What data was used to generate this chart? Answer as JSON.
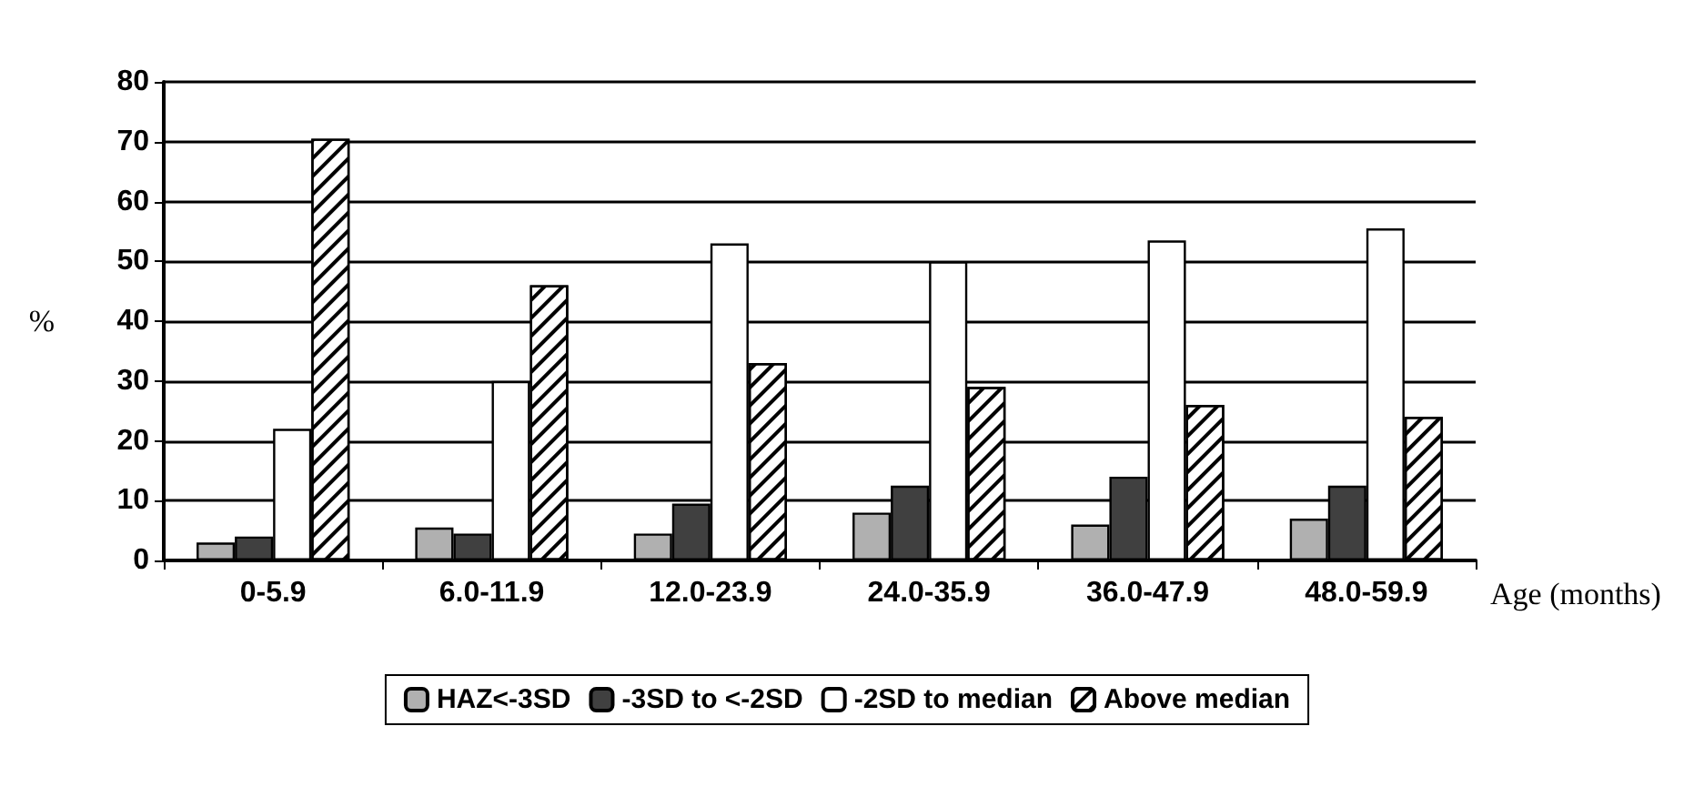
{
  "chart_data": {
    "type": "bar",
    "xlabel": "Age (months)",
    "ylabel": "%",
    "categories": [
      "0-5.9",
      "6.0-11.9",
      "12.0-23.9",
      "24.0-35.9",
      "36.0-47.9",
      "48.0-59.9"
    ],
    "series": [
      {
        "name": "HAZ<-3SD",
        "color": "#b0b0b0",
        "values": [
          3,
          5.5,
          4.5,
          8,
          6,
          7
        ]
      },
      {
        "name": "-3SD to <-2SD",
        "color": "#404040",
        "values": [
          4,
          4.5,
          9.5,
          12.5,
          14,
          12.5
        ]
      },
      {
        "name": "-2SD to median",
        "color": "#ffffff",
        "values": [
          22,
          30,
          53,
          50,
          53.5,
          55.5
        ]
      },
      {
        "name": "Above median",
        "color": "#ffffff",
        "values": [
          70.5,
          46,
          33,
          29,
          26,
          24
        ]
      }
    ],
    "ylim": [
      0,
      80
    ],
    "yticks": [
      0,
      10,
      20,
      30,
      40,
      50,
      60,
      70,
      80
    ],
    "grid": "y",
    "legend": "bottom"
  }
}
